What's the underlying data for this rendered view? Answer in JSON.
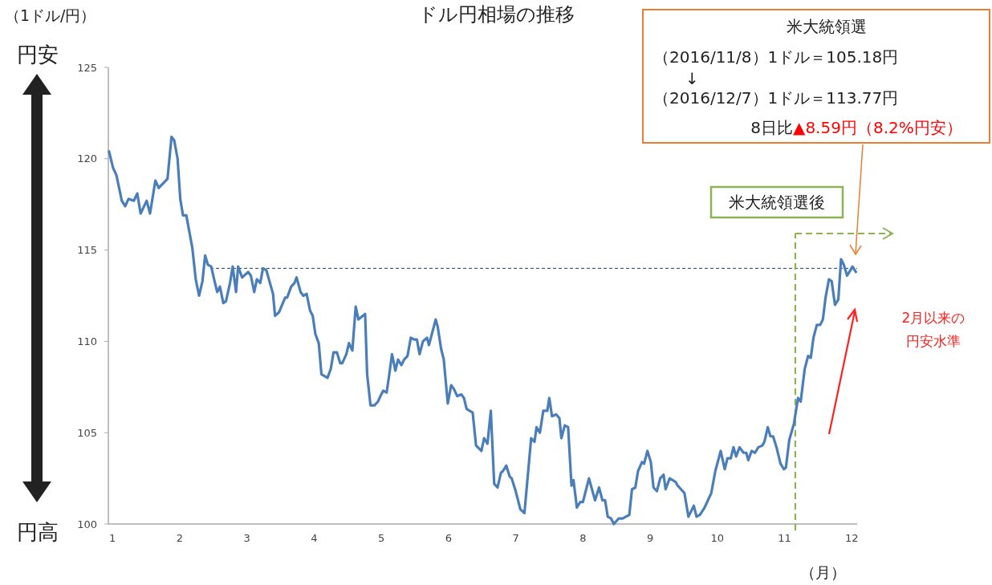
{
  "chart_data": {
    "type": "line",
    "title": "ドル円相場の推移",
    "ylabel": "（1ドル/円）",
    "xlabel": "（月）",
    "xlim": [
      0.94,
      12.08
    ],
    "xticks": [
      1,
      2,
      3,
      4,
      5,
      6,
      7,
      8,
      9,
      10,
      11,
      12
    ],
    "ylim": [
      100,
      125
    ],
    "yticks": [
      100,
      105,
      110,
      115,
      120,
      125
    ],
    "grid": false,
    "line_style": "solid",
    "x": [
      0.95,
      1.01,
      1.06,
      1.14,
      1.19,
      1.24,
      1.32,
      1.37,
      1.42,
      1.51,
      1.56,
      1.64,
      1.69,
      1.82,
      1.88,
      1.92,
      1.97,
      2.01,
      2.05,
      2.1,
      2.15,
      2.19,
      2.24,
      2.29,
      2.34,
      2.38,
      2.42,
      2.47,
      2.52,
      2.56,
      2.6,
      2.65,
      2.69,
      2.75,
      2.79,
      2.84,
      2.87,
      2.93,
      3.02,
      3.06,
      3.11,
      3.15,
      3.2,
      3.24,
      3.29,
      3.39,
      3.42,
      3.48,
      3.57,
      3.6,
      3.66,
      3.71,
      3.74,
      3.8,
      3.84,
      3.89,
      3.94,
      3.98,
      4.02,
      4.07,
      4.11,
      4.2,
      4.25,
      4.29,
      4.34,
      4.39,
      4.42,
      4.48,
      4.52,
      4.57,
      4.62,
      4.66,
      4.76,
      4.79,
      4.84,
      4.9,
      4.95,
      5.0,
      5.03,
      5.08,
      5.12,
      5.16,
      5.21,
      5.25,
      5.3,
      5.34,
      5.39,
      5.44,
      5.49,
      5.53,
      5.57,
      5.62,
      5.68,
      5.71,
      5.81,
      5.84,
      5.89,
      5.93,
      5.99,
      6.04,
      6.08,
      6.13,
      6.19,
      6.23,
      6.27,
      6.36,
      6.41,
      6.49,
      6.53,
      6.58,
      6.63,
      6.68,
      6.73,
      6.78,
      6.81,
      6.86,
      6.91,
      6.94,
      7.0,
      7.07,
      7.13,
      7.23,
      7.28,
      7.31,
      7.36,
      7.41,
      7.47,
      7.5,
      7.54,
      7.6,
      7.65,
      7.68,
      7.73,
      7.78,
      7.83,
      7.86,
      7.91,
      7.96,
      8.0,
      8.09,
      8.18,
      8.24,
      8.29,
      8.33,
      8.37,
      8.42,
      8.46,
      8.53,
      8.59,
      8.69,
      8.73,
      8.78,
      8.82,
      8.88,
      8.91,
      8.96,
      9.01,
      9.05,
      9.1,
      9.15,
      9.2,
      9.23,
      9.29,
      9.38,
      9.41,
      9.46,
      9.51,
      9.57,
      9.65,
      9.69,
      9.74,
      9.81,
      9.91,
      9.97,
      10.05,
      10.11,
      10.15,
      10.2,
      10.24,
      10.28,
      10.33,
      10.39,
      10.43,
      10.46,
      10.51,
      10.56,
      10.61,
      10.67,
      10.7,
      10.75,
      10.79,
      10.83,
      10.88,
      10.94,
      10.99,
      11.02,
      11.07,
      11.14,
      11.2,
      11.24,
      11.3,
      11.35,
      11.39,
      11.43,
      11.48,
      11.53,
      11.57,
      11.61,
      11.66,
      11.7,
      11.75,
      11.8,
      11.84,
      11.88,
      11.93,
      11.98,
      12.01,
      12.06
    ],
    "series": [
      {
        "color": "#4a7ebb",
        "values": [
          120.4,
          119.5,
          119.1,
          117.7,
          117.4,
          117.8,
          117.7,
          118.1,
          117.0,
          117.7,
          117.0,
          118.8,
          118.4,
          118.9,
          121.2,
          121.0,
          120.0,
          117.8,
          116.9,
          116.9,
          115.9,
          115.1,
          113.4,
          112.5,
          113.3,
          114.7,
          114.2,
          114.1,
          113.3,
          112.7,
          113.0,
          112.1,
          112.2,
          113.2,
          114.1,
          112.7,
          114.1,
          113.5,
          113.8,
          113.6,
          112.7,
          113.4,
          113.2,
          114.0,
          113.9,
          112.6,
          111.4,
          111.6,
          112.4,
          112.4,
          113.0,
          113.2,
          113.5,
          112.7,
          112.5,
          112.6,
          111.7,
          111.4,
          110.4,
          109.9,
          108.2,
          108.0,
          108.5,
          109.4,
          109.4,
          108.8,
          108.8,
          109.3,
          109.9,
          109.5,
          111.9,
          111.2,
          111.5,
          108.2,
          106.5,
          106.5,
          106.7,
          107.1,
          107.3,
          107.2,
          108.2,
          109.3,
          108.4,
          109.0,
          108.7,
          109.0,
          109.2,
          110.2,
          110.1,
          110.1,
          109.3,
          110.0,
          110.2,
          109.8,
          111.2,
          110.8,
          109.6,
          109.0,
          106.6,
          107.6,
          107.4,
          107.0,
          107.1,
          106.9,
          106.3,
          106.1,
          104.3,
          104.0,
          104.7,
          104.4,
          106.2,
          102.2,
          102.0,
          102.8,
          102.9,
          103.2,
          102.6,
          102.5,
          101.8,
          100.8,
          100.6,
          104.7,
          104.5,
          105.3,
          105.0,
          106.2,
          106.2,
          106.9,
          105.9,
          106.0,
          105.8,
          104.7,
          105.4,
          105.3,
          102.1,
          102.4,
          100.9,
          101.2,
          101.2,
          102.5,
          101.3,
          102.0,
          101.3,
          101.3,
          100.4,
          100.3,
          100.0,
          100.3,
          100.3,
          100.5,
          101.9,
          102.0,
          102.9,
          103.4,
          103.3,
          104.0,
          103.4,
          102.0,
          101.8,
          102.5,
          102.7,
          101.9,
          102.5,
          102.3,
          102.1,
          101.9,
          101.7,
          100.4,
          101.0,
          100.4,
          100.5,
          100.9,
          101.7,
          102.9,
          104.0,
          103.0,
          103.6,
          103.6,
          104.2,
          103.7,
          104.2,
          103.9,
          103.9,
          103.5,
          104.0,
          103.9,
          104.2,
          104.3,
          104.5,
          105.3,
          104.8,
          104.8,
          104.2,
          103.3,
          103.0,
          103.1,
          104.6,
          105.5,
          106.9,
          106.7,
          108.5,
          109.2,
          109.1,
          110.2,
          110.9,
          110.9,
          111.2,
          112.4,
          113.4,
          113.3,
          112.0,
          112.3,
          114.5,
          114.2,
          113.6,
          113.9,
          114.1,
          113.8
        ]
      }
    ],
    "ref_lines": [
      {
        "axis": "y",
        "value": 114,
        "color": "#1f3864",
        "line_style": "dashed"
      },
      {
        "axis": "x",
        "value": 11.16,
        "label": "米大統領選後",
        "color": "#8db254",
        "line_style": "dashed"
      }
    ],
    "annotations": [
      "円安",
      "円高",
      "米大統領選",
      "（2016/11/8）1ドル＝105.18円",
      "↓",
      "（2016/12/7）1ドル＝113.77円",
      "8日比",
      "▲8.59円（8.2%円安）",
      "2月以来の",
      "円安水準"
    ]
  }
}
